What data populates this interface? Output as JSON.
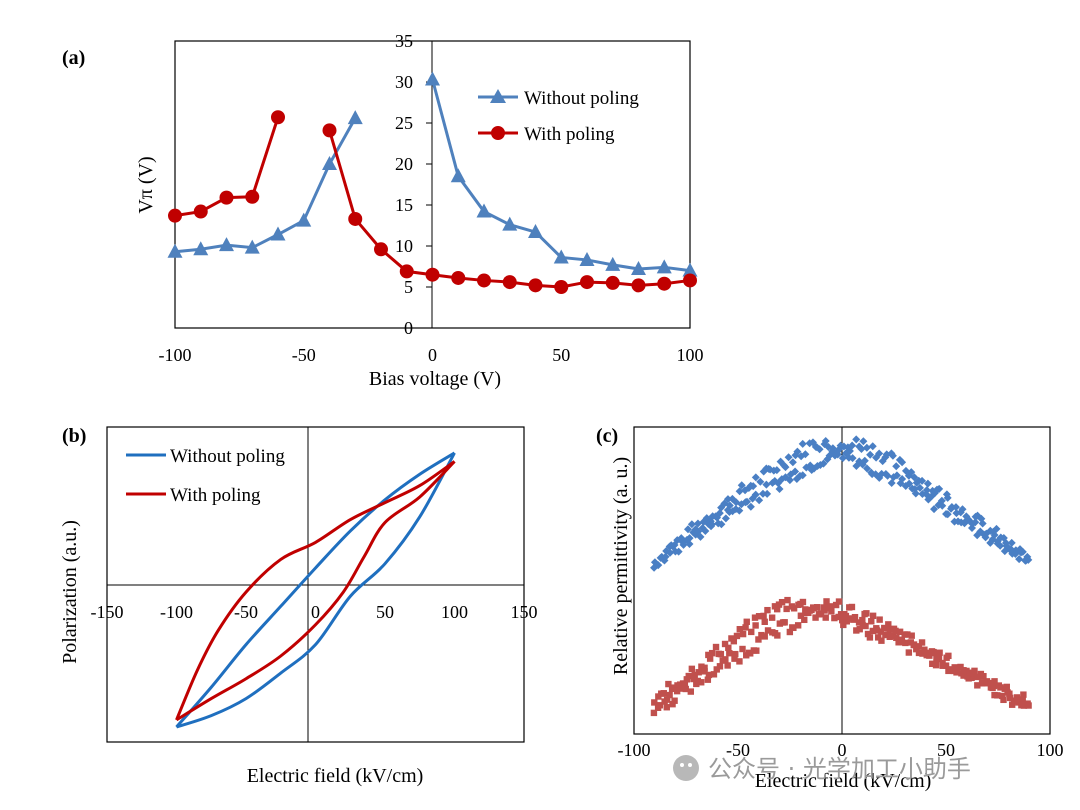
{
  "chart_data": [
    {
      "panel": "(a)",
      "type": "line",
      "xlabel": "Bias voltage (V)",
      "ylabel": "Vπ (V)",
      "xlim": [
        -100,
        100
      ],
      "ylim": [
        0,
        35
      ],
      "xticks": [
        "-100",
        "-50",
        "0",
        "50",
        "100"
      ],
      "yticks": [
        "0",
        "5",
        "10",
        "15",
        "20",
        "25",
        "30",
        "35"
      ],
      "legend_position": "top-right",
      "series": [
        {
          "name": "Without poling",
          "color": "#4f81bd",
          "marker": "triangle",
          "segments": [
            [
              [
                -100,
                9.3
              ],
              [
                -90,
                9.6
              ],
              [
                -80,
                10.1
              ],
              [
                -70,
                9.8
              ],
              [
                -60,
                11.4
              ],
              [
                -50,
                13.1
              ],
              [
                -40,
                20.0
              ],
              [
                -30,
                25.6
              ]
            ],
            [
              [
                0,
                30.3
              ],
              [
                10,
                18.5
              ],
              [
                20,
                14.2
              ],
              [
                30,
                12.6
              ],
              [
                40,
                11.7
              ],
              [
                50,
                8.6
              ],
              [
                60,
                8.3
              ],
              [
                70,
                7.7
              ],
              [
                80,
                7.2
              ],
              [
                90,
                7.4
              ],
              [
                100,
                7.0
              ]
            ]
          ]
        },
        {
          "name": "With poling",
          "color": "#c00000",
          "marker": "circle",
          "segments": [
            [
              [
                -100,
                13.7
              ],
              [
                -90,
                14.2
              ],
              [
                -80,
                15.9
              ],
              [
                -70,
                16.0
              ],
              [
                -60,
                25.7
              ]
            ],
            [
              [
                -40,
                24.1
              ],
              [
                -30,
                13.3
              ],
              [
                -20,
                9.6
              ],
              [
                -10,
                6.9
              ],
              [
                0,
                6.5
              ],
              [
                10,
                6.1
              ],
              [
                20,
                5.8
              ],
              [
                30,
                5.6
              ],
              [
                40,
                5.2
              ],
              [
                50,
                5.0
              ],
              [
                60,
                5.6
              ],
              [
                70,
                5.5
              ],
              [
                80,
                5.2
              ],
              [
                90,
                5.4
              ],
              [
                100,
                5.8
              ]
            ]
          ]
        }
      ]
    },
    {
      "panel": "(b)",
      "type": "line",
      "xlabel": "Electric field (kV/cm)",
      "ylabel": "Polarization (a.u.)",
      "xlim": [
        -150,
        150
      ],
      "ylim": [
        -1.15,
        1.0
      ],
      "xticks": [
        "-150",
        "-100",
        "-50",
        "0",
        "50",
        "100",
        "150"
      ],
      "legend_position": "top-left",
      "series": [
        {
          "name": "Without poling",
          "color": "#1f6fbf",
          "upper_branch": [
            [
              -100,
              -1.0
            ],
            [
              -75,
              -0.72
            ],
            [
              -50,
              -0.42
            ],
            [
              -25,
              -0.15
            ],
            [
              0,
              0.12
            ],
            [
              25,
              0.38
            ],
            [
              50,
              0.6
            ],
            [
              75,
              0.78
            ],
            [
              100,
              0.93
            ]
          ],
          "lower_branch": [
            [
              100,
              0.93
            ],
            [
              75,
              0.48
            ],
            [
              50,
              0.15
            ],
            [
              25,
              -0.08
            ],
            [
              0,
              -0.42
            ],
            [
              -25,
              -0.62
            ],
            [
              -50,
              -0.8
            ],
            [
              -75,
              -0.92
            ],
            [
              -100,
              -1.0
            ]
          ]
        },
        {
          "name": "With poling",
          "color": "#c00000",
          "upper_branch": [
            [
              -100,
              -0.95
            ],
            [
              -85,
              -0.6
            ],
            [
              -70,
              -0.32
            ],
            [
              -50,
              -0.05
            ],
            [
              -25,
              0.18
            ],
            [
              0,
              0.3
            ],
            [
              25,
              0.46
            ],
            [
              50,
              0.58
            ],
            [
              75,
              0.7
            ],
            [
              100,
              0.87
            ]
          ],
          "lower_branch": [
            [
              100,
              0.87
            ],
            [
              75,
              0.62
            ],
            [
              50,
              0.44
            ],
            [
              35,
              0.2
            ],
            [
              20,
              -0.05
            ],
            [
              0,
              -0.28
            ],
            [
              -25,
              -0.5
            ],
            [
              -50,
              -0.66
            ],
            [
              -75,
              -0.8
            ],
            [
              -100,
              -0.95
            ]
          ]
        }
      ]
    },
    {
      "panel": "(c)",
      "type": "scatter",
      "xlabel": "Electric field (kV/cm)",
      "ylabel": "Relative permittivity (a. u.)",
      "xlim": [
        -100,
        100
      ],
      "xticks": [
        "-100",
        "-50",
        "0",
        "50",
        "100"
      ],
      "ylim": [
        0,
        1
      ],
      "series": [
        {
          "name": "Without poling",
          "color": "#4a7fc4",
          "marker": "diamond",
          "x_range": [
            -90,
            90
          ],
          "branches": [
            {
              "peak_x": -12,
              "peak_y": 0.95,
              "ends_y": 0.56
            },
            {
              "peak_x": 8,
              "peak_y": 0.95,
              "ends_y": 0.56
            }
          ]
        },
        {
          "name": "With poling",
          "color": "#c0504d",
          "marker": "square",
          "x_range": [
            -90,
            90
          ],
          "branches": [
            {
              "peak_x": -25,
              "peak_y": 0.43,
              "ends_y": 0.1
            },
            {
              "peak_x": -5,
              "peak_y": 0.42,
              "ends_y": 0.08
            }
          ]
        }
      ]
    }
  ],
  "labels": {
    "a": "(a)",
    "b": "(b)",
    "c": "(c)"
  },
  "watermark": "公众号 · 光学加工小助手"
}
